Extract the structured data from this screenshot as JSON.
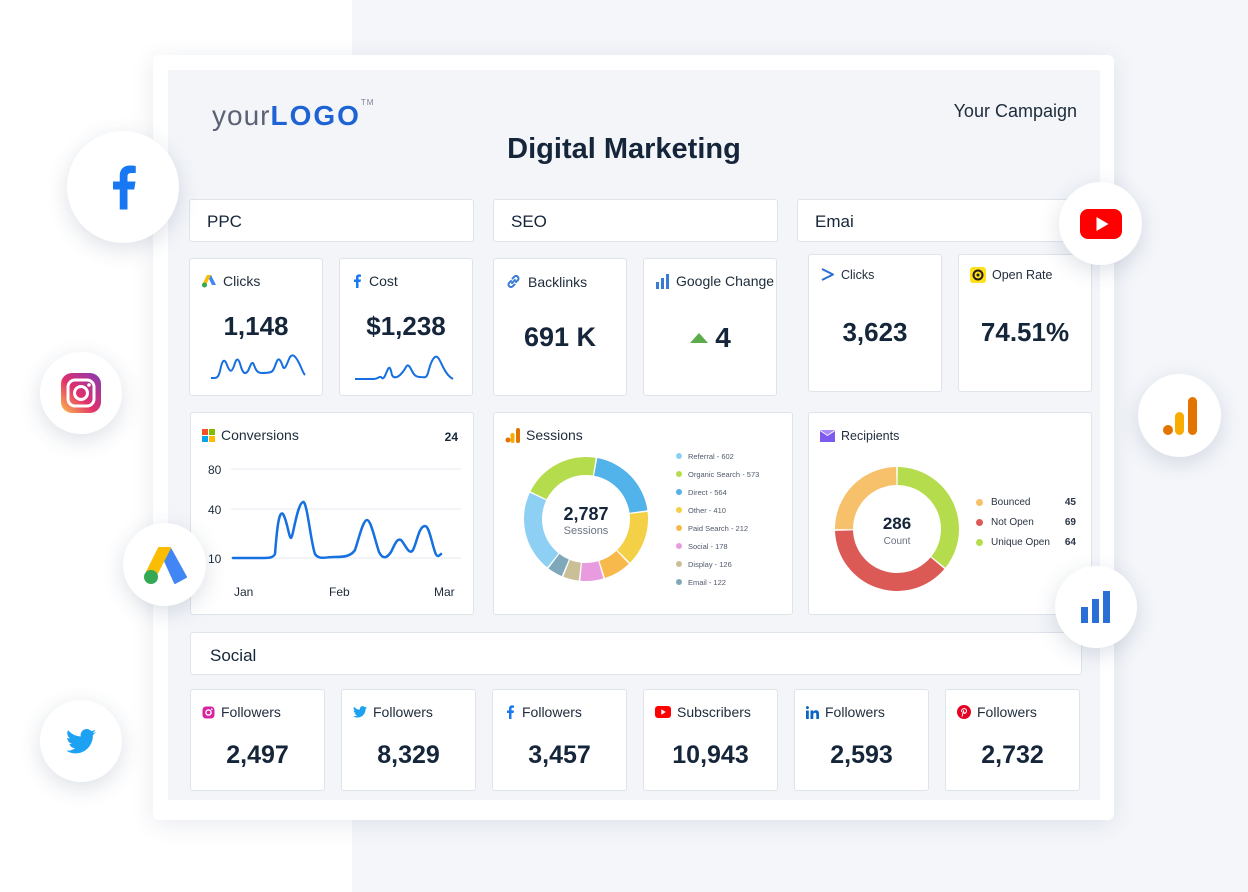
{
  "header": {
    "logo_your": "your",
    "logo_logo": "LOGO",
    "logo_tm": "TM",
    "campaign": "Your Campaign",
    "title": "Digital Marketing"
  },
  "sections": {
    "ppc": "PPC",
    "seo": "SEO",
    "email": "Emai",
    "social": "Social"
  },
  "ppc": {
    "clicks": {
      "label": "Clicks",
      "value": "1,148"
    },
    "cost": {
      "label": "Cost",
      "value": "$1,238"
    }
  },
  "seo": {
    "backlinks": {
      "label": "Backlinks",
      "value": "691 K"
    },
    "google_change": {
      "label": "Google Change",
      "value": "4"
    }
  },
  "email": {
    "clicks": {
      "label": "Clicks",
      "value": "3,623"
    },
    "open_rate": {
      "label": "Open Rate",
      "value": "74.51%"
    }
  },
  "conversions": {
    "label": "Conversions",
    "total": "24",
    "y_ticks": [
      "80",
      "40",
      "10"
    ],
    "x_ticks": [
      "Jan",
      "Feb",
      "Mar"
    ]
  },
  "sessions": {
    "label": "Sessions",
    "center_value": "2,787",
    "center_label": "Sessions",
    "legend": [
      {
        "text": "Referral - 602",
        "value": 602,
        "color": "#8ecff4"
      },
      {
        "text": "Organic Search - 573",
        "value": 573,
        "color": "#b5dc4c"
      },
      {
        "text": "Direct - 564",
        "value": 564,
        "color": "#52b2ea"
      },
      {
        "text": "Other - 410",
        "value": 410,
        "color": "#f3d046"
      },
      {
        "text": "Paid Search - 212",
        "value": 212,
        "color": "#f7b84c"
      },
      {
        "text": "Social - 178",
        "value": 178,
        "color": "#e99be0"
      },
      {
        "text": "Display - 126",
        "value": 126,
        "color": "#cbbf98"
      },
      {
        "text": "Email - 122",
        "value": 122,
        "color": "#7fa9ba"
      }
    ]
  },
  "recipients": {
    "label": "Recipients",
    "center_value": "286",
    "center_label": "Count",
    "legend": [
      {
        "text": "Bounced",
        "value": "45",
        "num": 45,
        "color": "#f7c06a"
      },
      {
        "text": "Not Open",
        "value": "69",
        "num": 69,
        "color": "#dc5a56"
      },
      {
        "text": "Unique Open",
        "value": "64",
        "num": 64,
        "color": "#b5dc4c"
      }
    ]
  },
  "social": [
    {
      "label": "Followers",
      "value": "2,497",
      "icon": "instagram-icon"
    },
    {
      "label": "Followers",
      "value": "8,329",
      "icon": "twitter-icon"
    },
    {
      "label": "Followers",
      "value": "3,457",
      "icon": "facebook-icon"
    },
    {
      "label": "Subscribers",
      "value": "10,943",
      "icon": "youtube-icon"
    },
    {
      "label": "Followers",
      "value": "2,593",
      "icon": "linkedin-icon"
    },
    {
      "label": "Followers",
      "value": "2,732",
      "icon": "pinterest-icon"
    }
  ],
  "colors": {
    "accent_blue": "#1e63d6",
    "line_blue": "#1670e0",
    "bg": "#f3f5f9"
  }
}
